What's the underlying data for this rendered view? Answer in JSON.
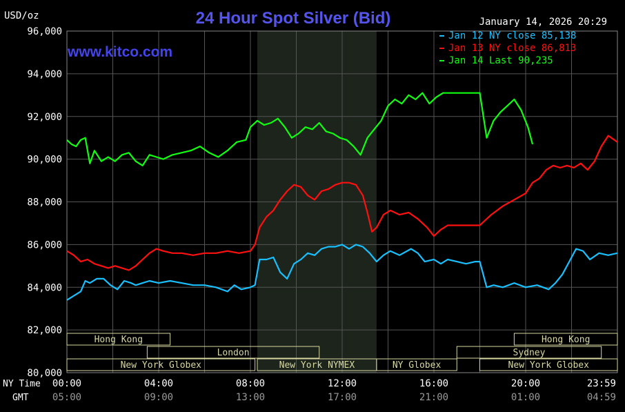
{
  "chart_data": {
    "type": "line",
    "title": "24 Hour Spot Silver (Bid)",
    "unit_label": "USD/oz",
    "site_label": "www.kitco.com",
    "timestamp": "January 14, 2026 20:29",
    "ylim": [
      80,
      96
    ],
    "xlim": [
      0,
      24
    ],
    "grid": true,
    "legend_position": "top-right",
    "y_ticks": [
      {
        "v": 80,
        "label": "80,000"
      },
      {
        "v": 82,
        "label": "82,000"
      },
      {
        "v": 84,
        "label": "84,000"
      },
      {
        "v": 86,
        "label": "86,000"
      },
      {
        "v": 88,
        "label": "88,000"
      },
      {
        "v": 90,
        "label": "90,000"
      },
      {
        "v": 92,
        "label": "92,000"
      },
      {
        "v": 94,
        "label": "94,000"
      },
      {
        "v": 96,
        "label": "96,000"
      }
    ],
    "x_axis": {
      "ny_label": "NY Time",
      "gmt_label": "GMT",
      "ticks": [
        {
          "h": 0,
          "ny": "00:00",
          "gmt": "05:00"
        },
        {
          "h": 4,
          "ny": "04:00",
          "gmt": "09:00"
        },
        {
          "h": 8,
          "ny": "08:00",
          "gmt": "13:00"
        },
        {
          "h": 12,
          "ny": "12:00",
          "gmt": "17:00"
        },
        {
          "h": 16,
          "ny": "16:00",
          "gmt": "21:00"
        },
        {
          "h": 20,
          "ny": "20:00",
          "gmt": "01:00"
        },
        {
          "h": 23.983,
          "ny": "23:59",
          "gmt": "04:59"
        }
      ]
    },
    "shaded_session": [
      8.3,
      13.5
    ],
    "sessions": [
      {
        "name": "Hong Kong",
        "start": 0,
        "end": 4.5,
        "row": 0
      },
      {
        "name": "London",
        "start": 3.5,
        "end": 11,
        "row": 1
      },
      {
        "name": "New York Globex",
        "start": 0,
        "end": 8.2,
        "row": 2
      },
      {
        "name": "New York NYMEX",
        "start": 8.3,
        "end": 13.5,
        "row": 2
      },
      {
        "name": "NY Globex",
        "start": 13.5,
        "end": 17,
        "row": 2
      },
      {
        "name": "Hong Kong",
        "start": 19.5,
        "end": 24,
        "row": 0
      },
      {
        "name": "Sydney",
        "start": 17,
        "end": 23.3,
        "row": 1
      },
      {
        "name": "New York Globex",
        "start": 18,
        "end": 24,
        "row": 2
      }
    ],
    "series": [
      {
        "name": "Jan 12 NY close",
        "legend_label": "Jan 12 NY close 85,138",
        "color": "#19c0ff",
        "x": [
          0,
          0.3,
          0.6,
          0.8,
          1.0,
          1.3,
          1.6,
          1.9,
          2.2,
          2.5,
          2.8,
          3.0,
          3.3,
          3.6,
          4.0,
          4.5,
          5.0,
          5.5,
          6.0,
          6.5,
          7.0,
          7.3,
          7.6,
          8.0,
          8.2,
          8.4,
          8.7,
          9.0,
          9.3,
          9.6,
          9.9,
          10.2,
          10.5,
          10.8,
          11.1,
          11.4,
          11.7,
          12.0,
          12.3,
          12.6,
          12.9,
          13.2,
          13.5,
          13.8,
          14.1,
          14.5,
          15.0,
          15.3,
          15.6,
          16.0,
          16.3,
          16.6,
          17.0,
          17.4,
          17.8,
          18.0,
          18.3,
          18.6,
          19.0,
          19.5,
          20.0,
          20.5,
          21.0,
          21.3,
          21.6,
          21.9,
          22.2,
          22.5,
          22.8,
          23.2,
          23.6,
          24.0
        ],
        "values": [
          83.4,
          83.6,
          83.8,
          84.3,
          84.2,
          84.4,
          84.4,
          84.1,
          83.9,
          84.3,
          84.2,
          84.1,
          84.2,
          84.3,
          84.2,
          84.3,
          84.2,
          84.1,
          84.1,
          84.0,
          83.8,
          84.1,
          83.9,
          84.0,
          84.1,
          85.3,
          85.3,
          85.4,
          84.7,
          84.4,
          85.1,
          85.3,
          85.6,
          85.5,
          85.8,
          85.9,
          85.9,
          86.0,
          85.8,
          86.0,
          85.9,
          85.6,
          85.2,
          85.5,
          85.7,
          85.5,
          85.8,
          85.6,
          85.2,
          85.3,
          85.1,
          85.3,
          85.2,
          85.1,
          85.2,
          85.2,
          84.0,
          84.1,
          84.0,
          84.2,
          84.0,
          84.1,
          83.9,
          84.2,
          84.6,
          85.2,
          85.8,
          85.7,
          85.3,
          85.6,
          85.5,
          85.6
        ]
      },
      {
        "name": "Jan 13 NY close",
        "legend_label": "Jan 13 NY close 86,813",
        "color": "#ff1010",
        "x": [
          0,
          0.3,
          0.6,
          0.9,
          1.2,
          1.5,
          1.8,
          2.1,
          2.4,
          2.7,
          3.0,
          3.3,
          3.6,
          3.9,
          4.2,
          4.6,
          5.0,
          5.5,
          6.0,
          6.5,
          7.0,
          7.5,
          8.0,
          8.2,
          8.4,
          8.7,
          9.0,
          9.3,
          9.6,
          9.9,
          10.2,
          10.5,
          10.8,
          11.1,
          11.4,
          11.7,
          12.0,
          12.3,
          12.6,
          12.9,
          13.1,
          13.3,
          13.5,
          13.8,
          14.1,
          14.5,
          14.9,
          15.3,
          15.7,
          16.0,
          16.3,
          16.6,
          17.0,
          17.4,
          17.8,
          18.0,
          18.5,
          19.0,
          19.5,
          20.0,
          20.3,
          20.6,
          20.9,
          21.2,
          21.5,
          21.8,
          22.1,
          22.4,
          22.7,
          23.0,
          23.3,
          23.6,
          24.0
        ],
        "values": [
          85.7,
          85.5,
          85.2,
          85.3,
          85.1,
          85.0,
          84.9,
          85.0,
          84.9,
          84.8,
          85.0,
          85.3,
          85.6,
          85.8,
          85.7,
          85.6,
          85.6,
          85.5,
          85.6,
          85.6,
          85.7,
          85.6,
          85.7,
          86.0,
          86.8,
          87.3,
          87.6,
          88.1,
          88.5,
          88.8,
          88.7,
          88.3,
          88.1,
          88.5,
          88.6,
          88.8,
          88.9,
          88.9,
          88.8,
          88.3,
          87.5,
          86.6,
          86.8,
          87.4,
          87.6,
          87.4,
          87.5,
          87.2,
          86.8,
          86.4,
          86.7,
          86.9,
          86.9,
          86.9,
          86.9,
          86.9,
          87.4,
          87.8,
          88.1,
          88.4,
          88.9,
          89.1,
          89.5,
          89.7,
          89.6,
          89.7,
          89.6,
          89.8,
          89.5,
          89.9,
          90.6,
          91.1,
          90.8
        ]
      },
      {
        "name": "Jan 14 Last",
        "legend_label": "Jan 14 Last 90,235",
        "color": "#10ff10",
        "x": [
          0,
          0.2,
          0.4,
          0.6,
          0.8,
          1.0,
          1.2,
          1.5,
          1.8,
          2.1,
          2.4,
          2.7,
          3.0,
          3.3,
          3.6,
          3.9,
          4.2,
          4.6,
          5.0,
          5.4,
          5.8,
          6.2,
          6.6,
          7.0,
          7.4,
          7.8,
          8.0,
          8.3,
          8.6,
          8.9,
          9.2,
          9.5,
          9.8,
          10.1,
          10.4,
          10.7,
          11.0,
          11.3,
          11.6,
          11.9,
          12.2,
          12.5,
          12.8,
          13.1,
          13.4,
          13.7,
          14.0,
          14.3,
          14.6,
          14.9,
          15.2,
          15.5,
          15.8,
          16.1,
          16.4,
          16.7,
          17.0,
          17.3,
          17.6,
          18.0,
          18.3,
          18.6,
          18.9,
          19.2,
          19.5,
          19.8,
          20.1,
          20.3
        ],
        "values": [
          90.9,
          90.7,
          90.6,
          90.9,
          91.0,
          89.8,
          90.4,
          89.9,
          90.1,
          89.9,
          90.2,
          90.3,
          89.9,
          89.7,
          90.2,
          90.1,
          90.0,
          90.2,
          90.3,
          90.4,
          90.6,
          90.3,
          90.1,
          90.4,
          90.8,
          90.9,
          91.5,
          91.8,
          91.6,
          91.7,
          91.9,
          91.5,
          91.0,
          91.2,
          91.5,
          91.4,
          91.7,
          91.3,
          91.2,
          91.0,
          90.9,
          90.6,
          90.2,
          91.0,
          91.4,
          91.8,
          92.5,
          92.8,
          92.6,
          93.0,
          92.8,
          93.1,
          92.6,
          92.9,
          93.1,
          93.1,
          93.1,
          93.1,
          93.1,
          93.1,
          91.0,
          91.8,
          92.2,
          92.5,
          92.8,
          92.3,
          91.5,
          90.7
        ]
      }
    ]
  }
}
